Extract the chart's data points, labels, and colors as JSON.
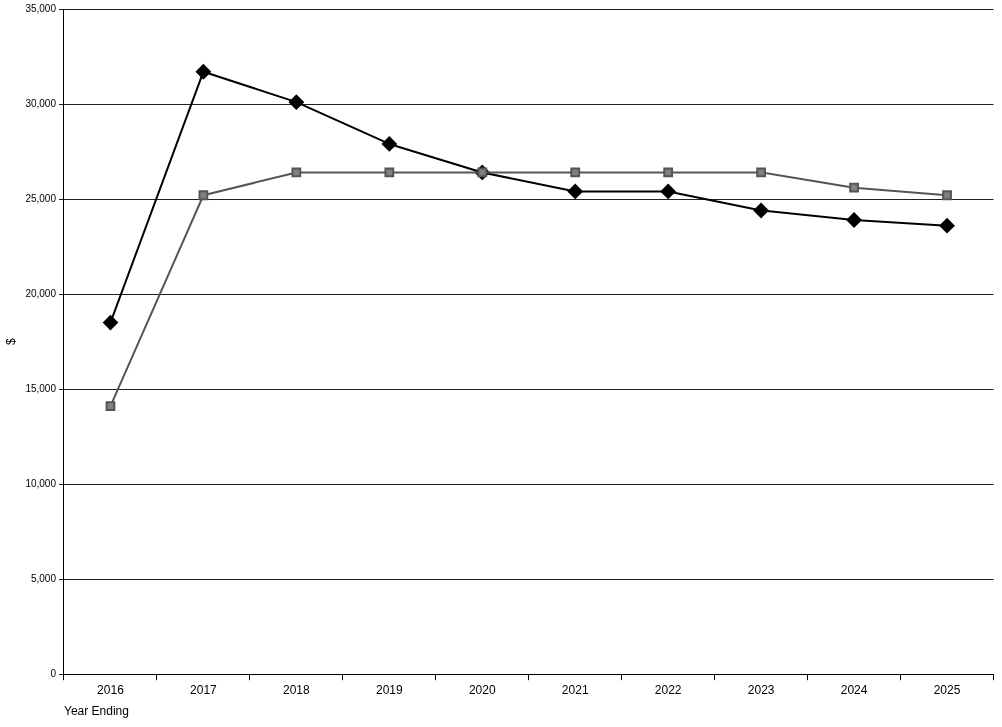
{
  "chart_data": {
    "type": "line",
    "xlabel": "Year Ending",
    "ylabel": "$",
    "categories": [
      "2016",
      "2017",
      "2018",
      "2019",
      "2020",
      "2021",
      "2022",
      "2023",
      "2024",
      "2025"
    ],
    "series": [
      {
        "color": "#000000",
        "marker": "diamond",
        "values": [
          18500,
          31700,
          30100,
          27900,
          26400,
          25400,
          25400,
          24400,
          23900,
          23600
        ]
      },
      {
        "color": "#808080",
        "marker": "square",
        "values": [
          14100,
          25200,
          26400,
          26400,
          26400,
          26400,
          26400,
          26400,
          25600,
          25200
        ]
      }
    ],
    "ylim": [
      0,
      35000
    ],
    "yticks": [
      {
        "value": 0,
        "label": "0"
      },
      {
        "value": 5000,
        "label": "5,000"
      },
      {
        "value": 10000,
        "label": "10,000"
      },
      {
        "value": 15000,
        "label": "15,000"
      },
      {
        "value": 20000,
        "label": "20,000"
      },
      {
        "value": 25000,
        "label": "25,000"
      },
      {
        "value": 30000,
        "label": "30,000"
      },
      {
        "value": 35000,
        "label": "35,000"
      }
    ],
    "grid": "y",
    "legend": false,
    "line_style": "solid"
  }
}
